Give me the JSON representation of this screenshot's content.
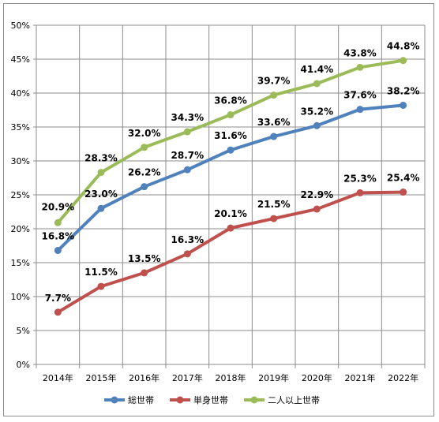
{
  "chart_data": {
    "type": "line",
    "title": "",
    "xlabel": "",
    "ylabel": "",
    "x": [
      "2014年",
      "2015年",
      "2016年",
      "2017年",
      "2018年",
      "2019年",
      "2020年",
      "2021年",
      "2022年"
    ],
    "ylim": [
      0,
      50
    ],
    "y_ticks": [
      "0%",
      "5%",
      "10%",
      "15%",
      "20%",
      "25%",
      "30%",
      "35%",
      "40%",
      "45%",
      "50%"
    ],
    "grid": true,
    "legend_position": "bottom",
    "series": [
      {
        "name": "総世帯",
        "color": "#4f81bd",
        "values": [
          16.8,
          23.0,
          26.2,
          28.7,
          31.6,
          33.6,
          35.2,
          37.6,
          38.2
        ],
        "labels": [
          "16.8%",
          "23.0%",
          "26.2%",
          "28.7%",
          "31.6%",
          "33.6%",
          "35.2%",
          "37.6%",
          "38.2%"
        ]
      },
      {
        "name": "単身世帯",
        "color": "#c0504d",
        "values": [
          7.7,
          11.5,
          13.5,
          16.3,
          20.1,
          21.5,
          22.9,
          25.3,
          25.4
        ],
        "labels": [
          "7.7%",
          "11.5%",
          "13.5%",
          "16.3%",
          "20.1%",
          "21.5%",
          "22.9%",
          "25.3%",
          "25.4%"
        ]
      },
      {
        "name": "二人以上世帯",
        "color": "#9bbb59",
        "values": [
          20.9,
          28.3,
          32.0,
          34.3,
          36.8,
          39.7,
          41.4,
          43.8,
          44.8
        ],
        "labels": [
          "20.9%",
          "28.3%",
          "32.0%",
          "34.3%",
          "36.8%",
          "39.7%",
          "41.4%",
          "43.8%",
          "44.8%"
        ]
      }
    ]
  }
}
